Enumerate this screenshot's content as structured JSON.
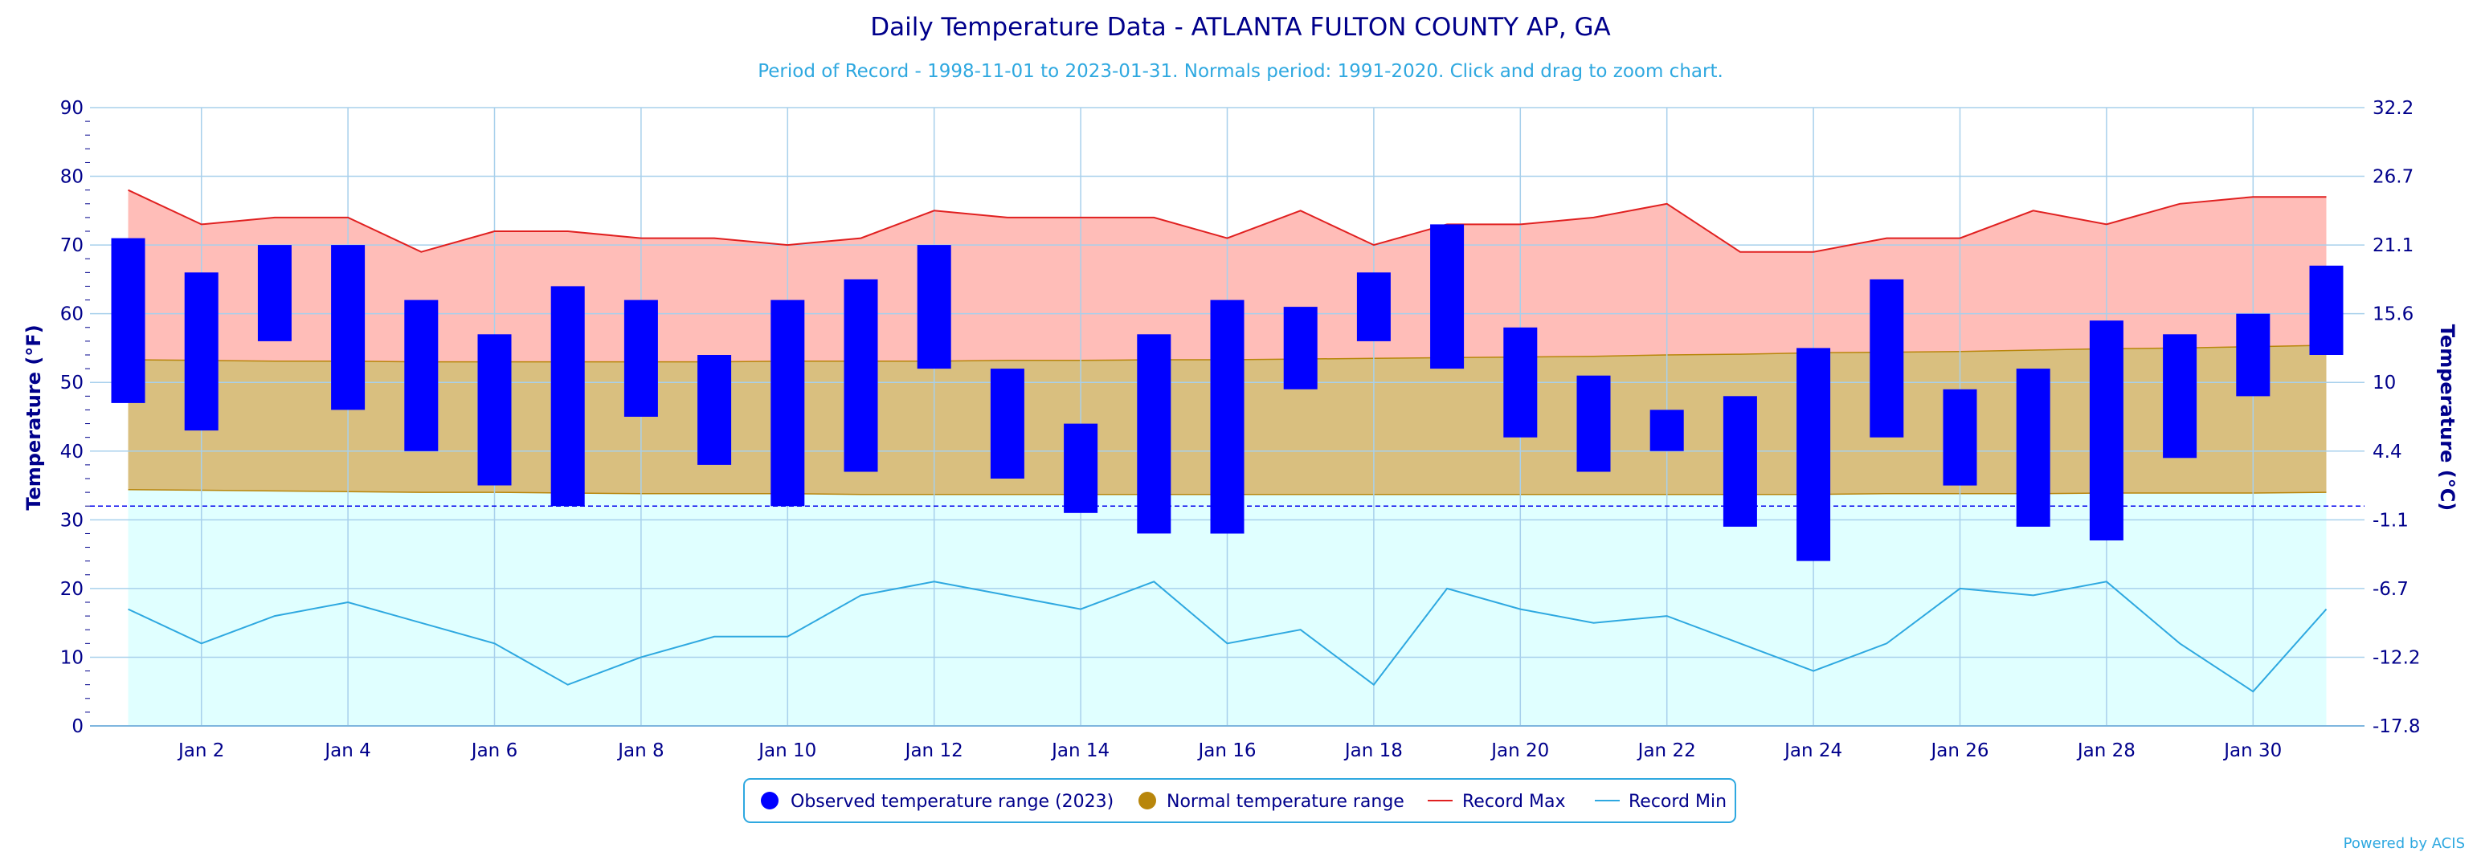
{
  "chart_data": {
    "type": "bar",
    "title": "Daily Temperature Data - ATLANTA FULTON COUNTY AP, GA",
    "subtitle": "Period of Record - 1998-11-01 to 2023-01-31. Normals period: 1991-2020. Click and drag to zoom chart.",
    "ylabel_left": "Temperature (°F)",
    "ylabel_right": "Temperature (°C)",
    "ylim": [
      0,
      90
    ],
    "yticks_left": [
      "0",
      "10",
      "20",
      "30",
      "40",
      "50",
      "60",
      "70",
      "80",
      "90"
    ],
    "yticks_right": [
      "-17.8",
      "-12.2",
      "-6.7",
      "-1.1",
      "4.4",
      "10",
      "15.6",
      "21.1",
      "26.7",
      "32.2"
    ],
    "x": [
      1,
      2,
      3,
      4,
      5,
      6,
      7,
      8,
      9,
      10,
      11,
      12,
      13,
      14,
      15,
      16,
      17,
      18,
      19,
      20,
      21,
      22,
      23,
      24,
      25,
      26,
      27,
      28,
      29,
      30,
      31
    ],
    "xtick_days": [
      2,
      4,
      6,
      8,
      10,
      12,
      14,
      16,
      18,
      20,
      22,
      24,
      26,
      28,
      30
    ],
    "xtick_labels": [
      "Jan 2",
      "Jan 4",
      "Jan 6",
      "Jan 8",
      "Jan 10",
      "Jan 12",
      "Jan 14",
      "Jan 16",
      "Jan 18",
      "Jan 20",
      "Jan 22",
      "Jan 24",
      "Jan 26",
      "Jan 28",
      "Jan 30"
    ],
    "freeze_line_f": 32,
    "grid": true,
    "legend_position": "bottom-center",
    "series": [
      {
        "name": "Observed temperature range (2023)",
        "color": "#0000ff",
        "high": [
          71,
          66,
          70,
          70,
          62,
          57,
          64,
          62,
          54,
          62,
          65,
          70,
          52,
          44,
          57,
          62,
          61,
          66,
          73,
          58,
          51,
          46,
          48,
          55,
          65,
          49,
          52,
          59,
          57,
          60,
          67
        ],
        "low": [
          47,
          43,
          56,
          46,
          40,
          35,
          32,
          45,
          38,
          32,
          37,
          52,
          36,
          31,
          28,
          28,
          49,
          56,
          52,
          42,
          37,
          40,
          29,
          24,
          42,
          35,
          29,
          27,
          39,
          48,
          54
        ]
      },
      {
        "name": "Normal temperature range",
        "color": "#b8860b",
        "high": [
          53.3,
          53.2,
          53.1,
          53.1,
          53.0,
          53.0,
          53.0,
          53.0,
          53.0,
          53.1,
          53.1,
          53.1,
          53.2,
          53.2,
          53.3,
          53.3,
          53.4,
          53.5,
          53.6,
          53.7,
          53.8,
          54.0,
          54.1,
          54.3,
          54.4,
          54.5,
          54.7,
          54.9,
          55.0,
          55.2,
          55.4
        ],
        "low": [
          34.4,
          34.3,
          34.2,
          34.1,
          34.0,
          34.0,
          33.9,
          33.8,
          33.8,
          33.8,
          33.7,
          33.7,
          33.7,
          33.7,
          33.7,
          33.7,
          33.7,
          33.7,
          33.7,
          33.7,
          33.7,
          33.7,
          33.7,
          33.7,
          33.8,
          33.8,
          33.8,
          33.9,
          33.9,
          33.9,
          34.0
        ]
      },
      {
        "name": "Record Max",
        "color": "#e02020",
        "values": [
          78,
          73,
          74,
          74,
          69,
          72,
          72,
          71,
          71,
          70,
          71,
          75,
          74,
          74,
          74,
          71,
          75,
          70,
          73,
          73,
          74,
          76,
          69,
          69,
          71,
          71,
          75,
          73,
          76,
          77,
          77
        ]
      },
      {
        "name": "Record Min",
        "color": "#2ea8e0",
        "values": [
          17,
          12,
          16,
          18,
          15,
          12,
          6,
          10,
          13,
          13,
          19,
          21,
          19,
          17,
          21,
          12,
          14,
          6,
          20,
          17,
          15,
          16,
          12,
          8,
          12,
          20,
          19,
          21,
          12,
          5,
          17
        ]
      }
    ],
    "colors": {
      "record_band": "#ffbdb8",
      "normal_band": "#d9bf7f",
      "below_band": "#e0ffff",
      "grid": "#a8d0ec",
      "axis_text": "#00008b",
      "freeze_line": "#0000ee"
    }
  },
  "legend": {
    "items": [
      {
        "label": "Observed temperature range (2023)",
        "color": "#0000ff",
        "marker": "circle"
      },
      {
        "label": "Normal temperature range",
        "color": "#b8860b",
        "marker": "circle"
      },
      {
        "label": "Record Max",
        "color": "#e02020",
        "marker": "line"
      },
      {
        "label": "Record Min",
        "color": "#2ea8e0",
        "marker": "line"
      }
    ]
  },
  "footer": {
    "credit": "Powered by ACIS"
  }
}
